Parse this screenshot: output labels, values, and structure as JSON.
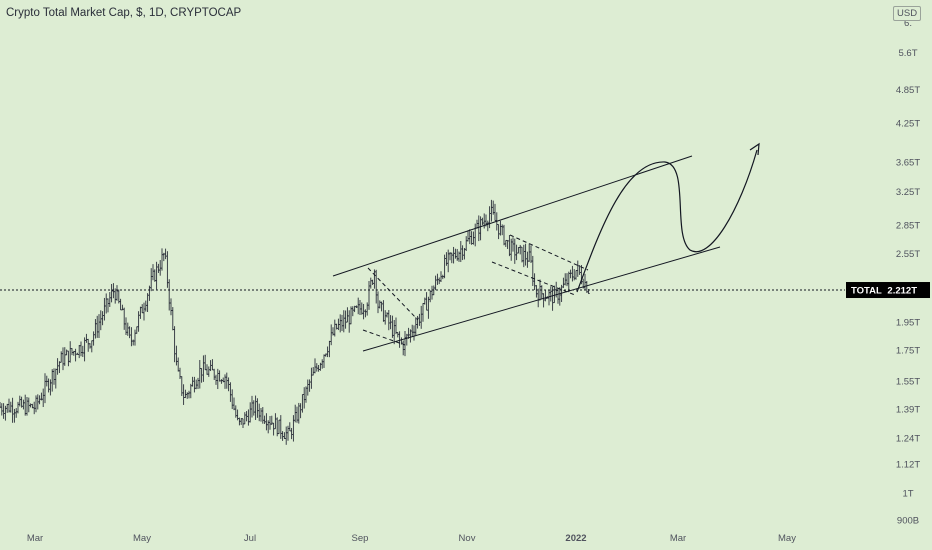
{
  "header": {
    "title": "Crypto Total Market Cap, $, 1D, CRYPTOCAP",
    "currency": "USD"
  },
  "chart_data": {
    "type": "candlestick",
    "y_scale": "log",
    "y_ticks": [
      {
        "label": "6.",
        "value": 6.3
      },
      {
        "label": "5.6T",
        "value": 5.6
      },
      {
        "label": "4.85T",
        "value": 4.85
      },
      {
        "label": "4.25T",
        "value": 4.25
      },
      {
        "label": "3.65T",
        "value": 3.65
      },
      {
        "label": "3.25T",
        "value": 3.25
      },
      {
        "label": "2.85T",
        "value": 2.85
      },
      {
        "label": "2.55T",
        "value": 2.55
      },
      {
        "label": "1.95T",
        "value": 1.95
      },
      {
        "label": "1.75T",
        "value": 1.75
      },
      {
        "label": "1.55T",
        "value": 1.55
      },
      {
        "label": "1.39T",
        "value": 1.39
      },
      {
        "label": "1.24T",
        "value": 1.24
      },
      {
        "label": "1.12T",
        "value": 1.12
      },
      {
        "label": "1T",
        "value": 1.0
      },
      {
        "label": "900B",
        "value": 0.9
      }
    ],
    "x_ticks": [
      "Mar",
      "May",
      "Jul",
      "Sep",
      "Nov",
      "2022",
      "Mar",
      "May"
    ],
    "x_ticks_bold": [
      false,
      false,
      false,
      false,
      false,
      true,
      false,
      false
    ],
    "current": {
      "label": "TOTAL",
      "value_label": "2.212T",
      "value": 2.212
    },
    "colors": {
      "background": "#ddedd3",
      "candles": "#2a2e39",
      "tag": "#000000",
      "drawings": "#131722"
    },
    "series": [
      {
        "date": "2021-03-01",
        "value": 1.4
      },
      {
        "date": "2021-03-15",
        "value": 1.68
      },
      {
        "date": "2021-04-01",
        "value": 1.82
      },
      {
        "date": "2021-04-14",
        "value": 2.22
      },
      {
        "date": "2021-04-23",
        "value": 1.8
      },
      {
        "date": "2021-05-05",
        "value": 2.3
      },
      {
        "date": "2021-05-12",
        "value": 2.55
      },
      {
        "date": "2021-05-19",
        "value": 1.6
      },
      {
        "date": "2021-05-23",
        "value": 1.45
      },
      {
        "date": "2021-06-01",
        "value": 1.62
      },
      {
        "date": "2021-06-15",
        "value": 1.58
      },
      {
        "date": "2021-06-22",
        "value": 1.3
      },
      {
        "date": "2021-07-01",
        "value": 1.4
      },
      {
        "date": "2021-07-20",
        "value": 1.25
      },
      {
        "date": "2021-08-01",
        "value": 1.55
      },
      {
        "date": "2021-08-15",
        "value": 1.9
      },
      {
        "date": "2021-09-01",
        "value": 2.1
      },
      {
        "date": "2021-09-06",
        "value": 2.42
      },
      {
        "date": "2021-09-07",
        "value": 2.1
      },
      {
        "date": "2021-09-21",
        "value": 1.78
      },
      {
        "date": "2021-10-01",
        "value": 2.0
      },
      {
        "date": "2021-10-15",
        "value": 2.45
      },
      {
        "date": "2021-10-25",
        "value": 2.62
      },
      {
        "date": "2021-11-09",
        "value": 3.0
      },
      {
        "date": "2021-11-20",
        "value": 2.6
      },
      {
        "date": "2021-12-01",
        "value": 2.5
      },
      {
        "date": "2021-12-04",
        "value": 2.2
      },
      {
        "date": "2021-12-15",
        "value": 2.15
      },
      {
        "date": "2021-12-27",
        "value": 2.4
      },
      {
        "date": "2022-01-03",
        "value": 2.212
      }
    ]
  }
}
